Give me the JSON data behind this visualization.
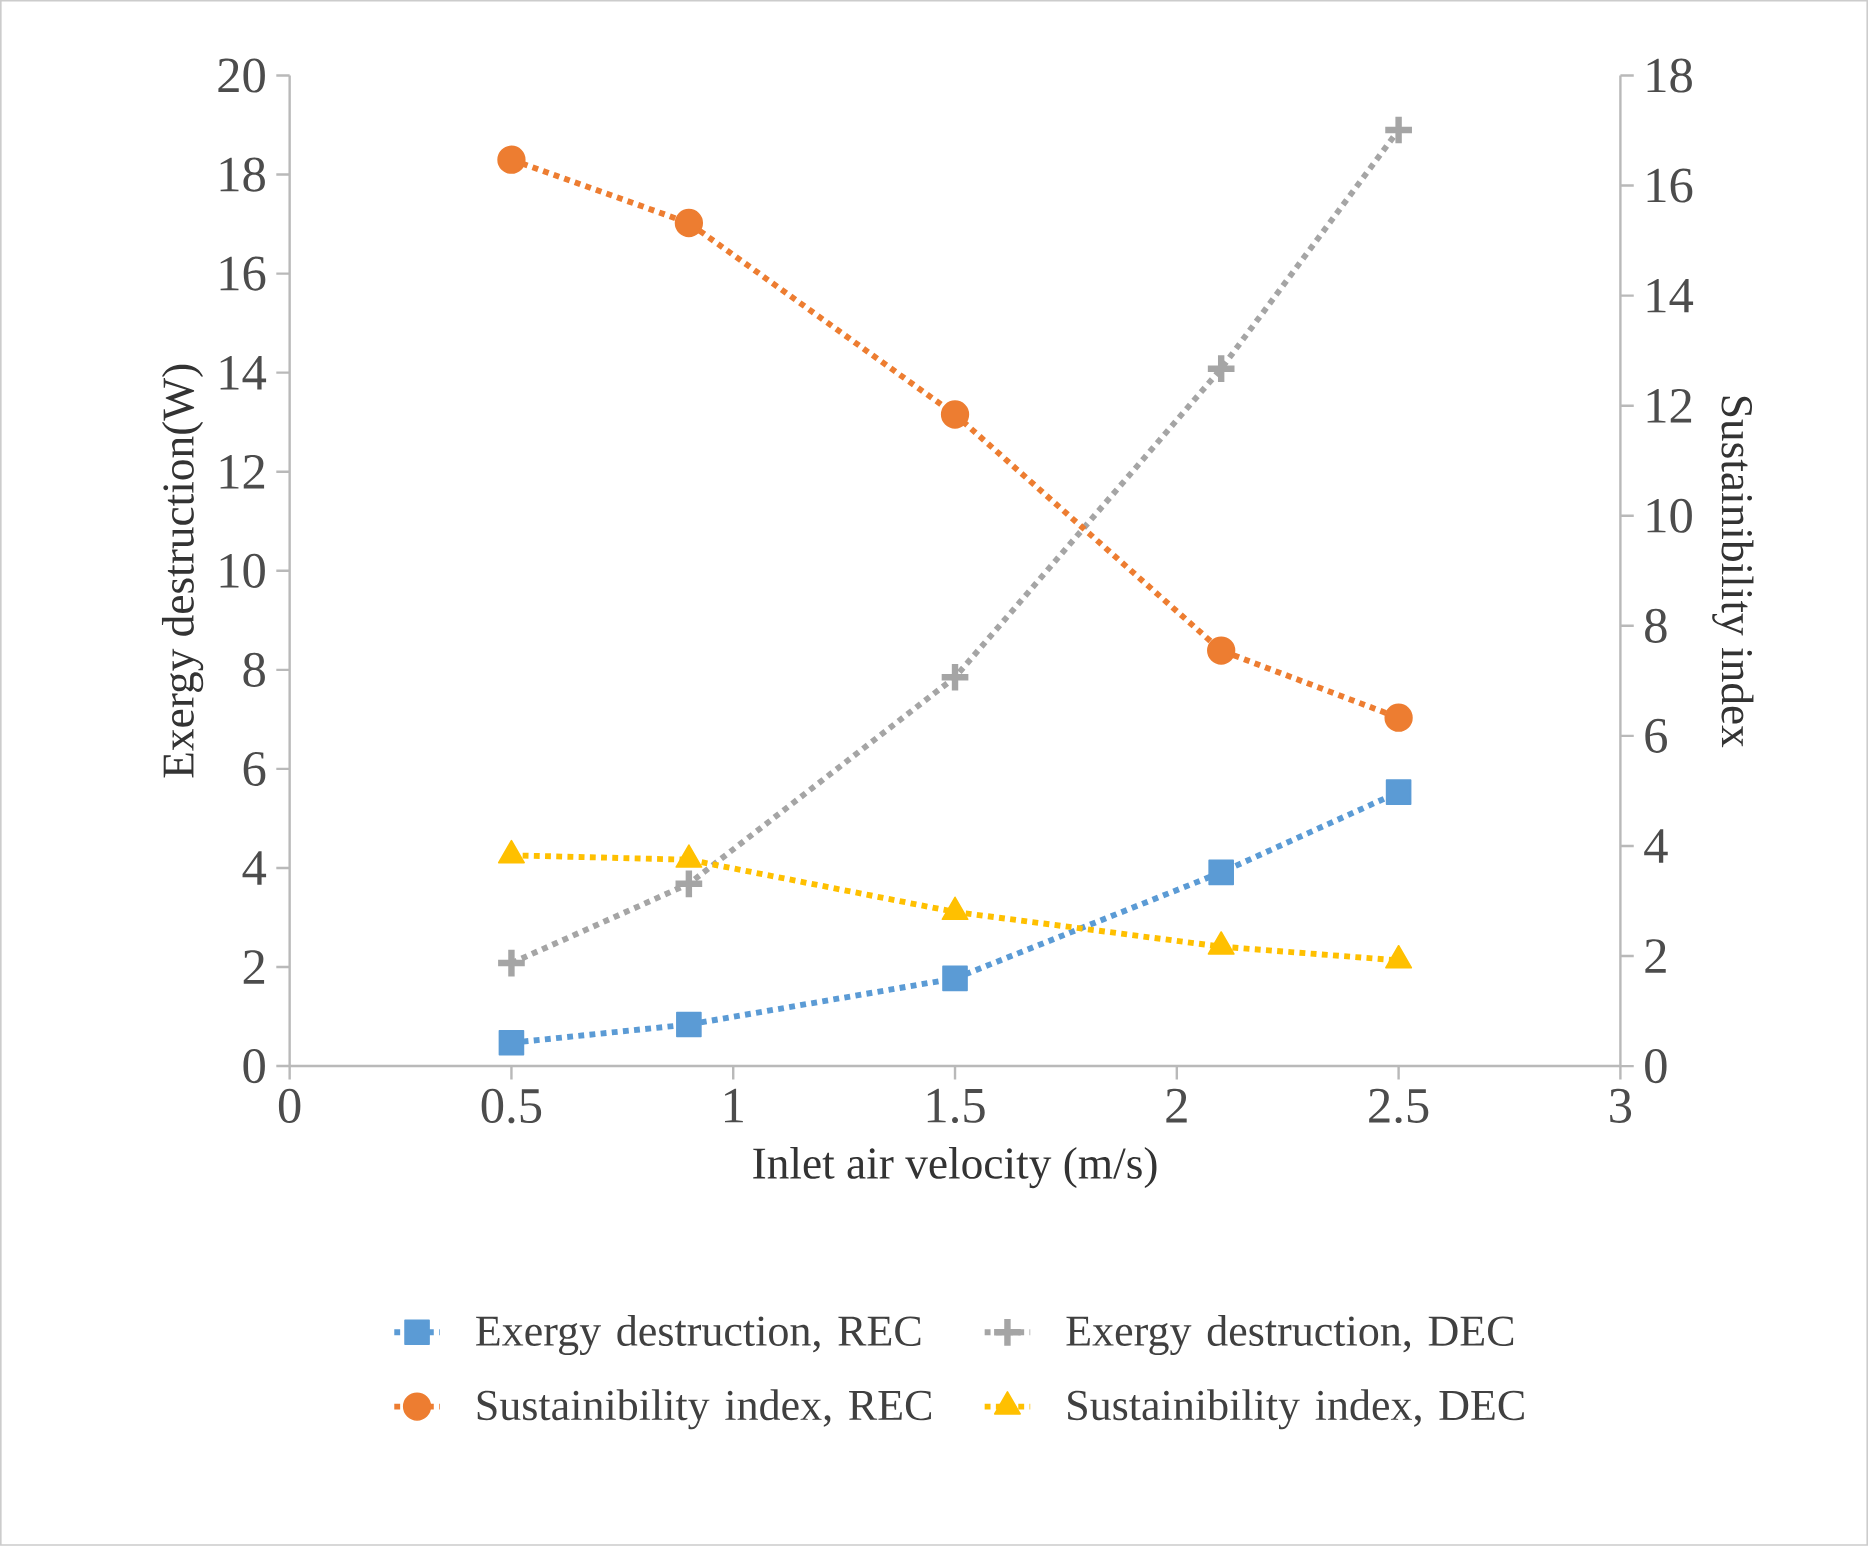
{
  "chart_data": {
    "type": "line",
    "xlabel": "Inlet air velocity (m/s)",
    "ylabel": "Exergy destruction(W)",
    "y2label": "Sustainibility index",
    "x": [
      0.5,
      0.9,
      1.5,
      2.1,
      2.5
    ],
    "xlim": [
      0,
      3
    ],
    "xticks": [
      0,
      0.5,
      1,
      1.5,
      2,
      2.5,
      3
    ],
    "ylim": [
      0,
      20
    ],
    "yticks": [
      0,
      2,
      4,
      6,
      8,
      10,
      12,
      14,
      16,
      18,
      20
    ],
    "y2lim": [
      0,
      18
    ],
    "y2ticks": [
      0,
      2,
      4,
      6,
      8,
      10,
      12,
      14,
      16,
      18
    ],
    "grid": false,
    "legend": "bottom",
    "line_style": "dotted",
    "series": [
      {
        "name": "Exergy destruction, REC",
        "color": "#5b9bd5",
        "marker": "square",
        "axis": "y",
        "values": [
          0.47,
          0.84,
          1.77,
          3.91,
          5.53
        ]
      },
      {
        "name": "Exergy destruction, DEC",
        "color": "#a5a5a5",
        "marker": "cross",
        "axis": "y",
        "values": [
          2.08,
          3.68,
          7.85,
          14.08,
          18.9
        ]
      },
      {
        "name": "Sustainibility index, REC",
        "color": "#ed7d31",
        "marker": "circle",
        "axis": "y2",
        "values": [
          16.47,
          15.32,
          11.84,
          7.55,
          6.33
        ]
      },
      {
        "name": "Sustainibility index, DEC",
        "color": "#ffc000",
        "marker": "triangle",
        "axis": "y2",
        "values": [
          3.83,
          3.75,
          2.8,
          2.17,
          1.92
        ]
      }
    ]
  }
}
